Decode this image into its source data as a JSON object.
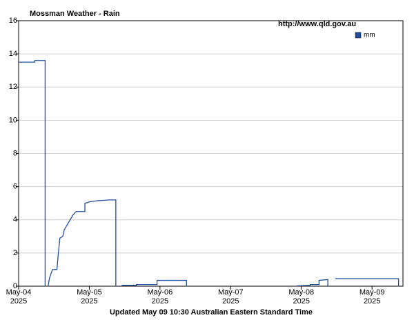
{
  "chart_data": {
    "type": "line",
    "title": "Mossman Weather - Rain",
    "source": "http://www.qld.gov.au",
    "footer": "Updated May 09 10:30 Australian Eastern Standard Time",
    "x": [
      "2025-05-04 00:00",
      "2025-05-04 05:30",
      "2025-05-04 05:30",
      "2025-05-04 09:00",
      "2025-05-04 09:00",
      null,
      "2025-05-04 10:00",
      "2025-05-04 10:30",
      "2025-05-04 11:30",
      "2025-05-04 13:00",
      "2025-05-04 13:30",
      "2025-05-04 14:00",
      "2025-05-04 15:00",
      "2025-05-04 15:30",
      "2025-05-04 16:30",
      "2025-05-04 17:30",
      "2025-05-04 18:30",
      "2025-05-04 19:30",
      "2025-05-04 22:30",
      "2025-05-04 22:30",
      "2025-05-05 00:30",
      "2025-05-05 03:00",
      "2025-05-05 07:00",
      "2025-05-05 09:00",
      "2025-05-05 09:00",
      null,
      "2025-05-05 11:00",
      "2025-05-05 16:00",
      "2025-05-05 16:00",
      "2025-05-05 23:00",
      "2025-05-05 23:00",
      "2025-05-06 09:00",
      "2025-05-06 09:00",
      null,
      "2025-05-07 22:30",
      "2025-05-08 03:00",
      "2025-05-08 03:00",
      "2025-05-08 06:00",
      "2025-05-08 06:00",
      "2025-05-08 09:00",
      "2025-05-08 09:00",
      null,
      "2025-05-08 11:30",
      "2025-05-09 09:00",
      "2025-05-09 09:00"
    ],
    "series": [
      {
        "name": "mm",
        "color": "#1f4e9c",
        "values": [
          13.5,
          13.5,
          13.6,
          13.6,
          0,
          null,
          0,
          0.5,
          1.0,
          1.0,
          2.0,
          2.9,
          3.0,
          3.4,
          3.7,
          4.0,
          4.3,
          4.5,
          4.5,
          5.0,
          5.1,
          5.15,
          5.2,
          5.2,
          0,
          null,
          0.05,
          0.05,
          0.1,
          0.1,
          0.35,
          0.35,
          0,
          null,
          0.02,
          0.05,
          0.1,
          0.1,
          0.35,
          0.4,
          0,
          null,
          0.45,
          0.45,
          0
        ]
      }
    ],
    "xlim": [
      "2025-05-04 00:00",
      "2025-05-09 10:30"
    ],
    "xticks": [
      {
        "value": "2025-05-04 00:00",
        "label": "May-04",
        "year": "2025"
      },
      {
        "value": "2025-05-05 00:00",
        "label": "May-05",
        "year": "2025"
      },
      {
        "value": "2025-05-06 00:00",
        "label": "May-06",
        "year": "2025"
      },
      {
        "value": "2025-05-07 00:00",
        "label": "May-07",
        "year": "2025"
      },
      {
        "value": "2025-05-08 00:00",
        "label": "May-08",
        "year": "2025"
      },
      {
        "value": "2025-05-09 00:00",
        "label": "May-09",
        "year": "2025"
      }
    ],
    "ylim": [
      0,
      16
    ],
    "yticks": [
      0,
      2,
      4,
      6,
      8,
      10,
      12,
      14,
      16
    ],
    "grid": true,
    "legend": "top-right"
  }
}
